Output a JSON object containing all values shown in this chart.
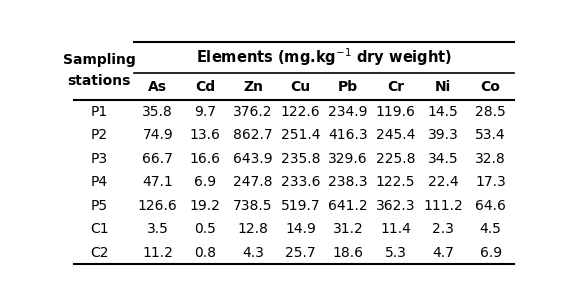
{
  "col_header_top": "Elements (mg.kg$^{-1}$ dry weight)",
  "col_header_row": [
    "As",
    "Cd",
    "Zn",
    "Cu",
    "Pb",
    "Cr",
    "Ni",
    "Co"
  ],
  "row_labels": [
    "P1",
    "P2",
    "P3",
    "P4",
    "P5",
    "C1",
    "C2"
  ],
  "row_header_line1": "Sampling",
  "row_header_line2": "stations",
  "data": [
    [
      "35.8",
      "9.7",
      "376.2",
      "122.6",
      "234.9",
      "119.6",
      "14.5",
      "28.5"
    ],
    [
      "74.9",
      "13.6",
      "862.7",
      "251.4",
      "416.3",
      "245.4",
      "39.3",
      "53.4"
    ],
    [
      "66.7",
      "16.6",
      "643.9",
      "235.8",
      "329.6",
      "225.8",
      "34.5",
      "32.8"
    ],
    [
      "47.1",
      "6.9",
      "247.8",
      "233.6",
      "238.3",
      "122.5",
      "22.4",
      "17.3"
    ],
    [
      "126.6",
      "19.2",
      "738.5",
      "519.7",
      "641.2",
      "362.3",
      "111.2",
      "64.6"
    ],
    [
      "3.5",
      "0.5",
      "12.8",
      "14.9",
      "31.2",
      "11.4",
      "2.3",
      "4.5"
    ],
    [
      "11.2",
      "0.8",
      "4.3",
      "25.7",
      "18.6",
      "5.3",
      "4.7",
      "6.9"
    ]
  ],
  "bg_color": "#ffffff",
  "text_color": "#000000",
  "header_fontsize": 10,
  "cell_fontsize": 10
}
